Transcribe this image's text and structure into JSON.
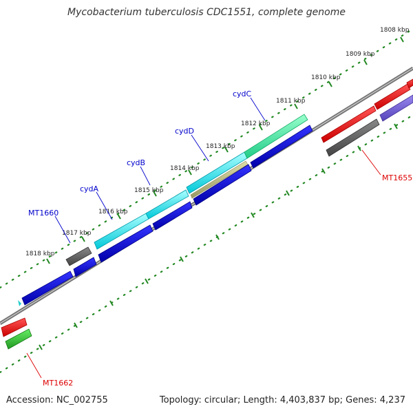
{
  "title": "Mycobacterium tuberculosis CDC1551, complete genome",
  "footer": {
    "accession": "Accession: NC_002755",
    "summary": "Topology: circular; Length: 4,403,837 bp; Genes: 4,237"
  },
  "colors": {
    "backbone": "#888888",
    "ticks": "#228822",
    "forward_label": "#0000cc",
    "reverse_label": "#dd0000",
    "blue": "#0000dd",
    "cyan": "#22eeee",
    "teal": "#33ee99",
    "gray": "#555555",
    "red": "#ee0000",
    "purple": "#7766dd",
    "green": "#33bb33",
    "olive": "#bbbb88"
  },
  "scale_labels": [
    "1808 kbp",
    "1809 kbp",
    "1810 kbp",
    "1811 kbp",
    "1812 kbp",
    "1813 kbp",
    "1814 kbp",
    "1815 kbp",
    "1816 kbp",
    "1817 kbp",
    "1818 kbp"
  ],
  "gene_labels": [
    {
      "text": "cydC",
      "strand": "forward"
    },
    {
      "text": "cydD",
      "strand": "forward"
    },
    {
      "text": "cydB",
      "strand": "forward"
    },
    {
      "text": "cydA",
      "strand": "forward"
    },
    {
      "text": "MT1660",
      "strand": "forward"
    },
    {
      "text": "MT1655",
      "strand": "reverse"
    },
    {
      "text": "MT1662",
      "strand": "reverse"
    }
  ]
}
